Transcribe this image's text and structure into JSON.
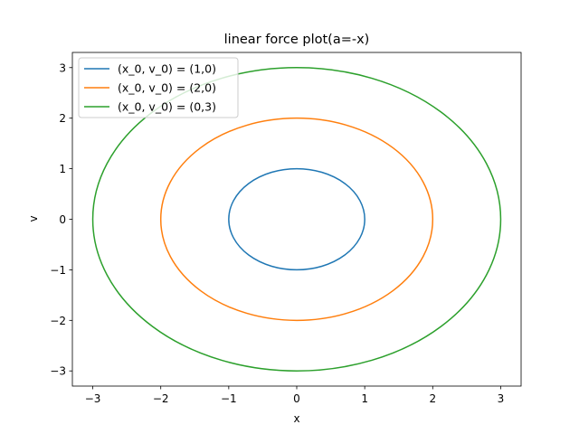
{
  "chart_data": {
    "type": "line",
    "title": "linear force plot(a=-x)",
    "xlabel": "x",
    "ylabel": "v",
    "xlim": [
      -3.3,
      3.3
    ],
    "ylim": [
      -3.3,
      3.3
    ],
    "xticks": [
      -3,
      -2,
      -1,
      0,
      1,
      2,
      3
    ],
    "yticks": [
      -3,
      -2,
      -1,
      0,
      1,
      2,
      3
    ],
    "xtick_labels": [
      "−3",
      "−2",
      "−1",
      "0",
      "1",
      "2",
      "3"
    ],
    "ytick_labels": [
      "−3",
      "−2",
      "−1",
      "0",
      "1",
      "2",
      "3"
    ],
    "grid": false,
    "legend_position": "top-left",
    "series": [
      {
        "name": "(x_0, v_0) = (1,0)",
        "color": "#1f77b4",
        "shape": "circle",
        "radius": 1
      },
      {
        "name": "(x_0, v_0) = (2,0)",
        "color": "#ff7f0e",
        "shape": "circle",
        "radius": 2
      },
      {
        "name": "(x_0, v_0) = (0,3)",
        "color": "#2ca02c",
        "shape": "circle",
        "radius": 3
      }
    ]
  }
}
